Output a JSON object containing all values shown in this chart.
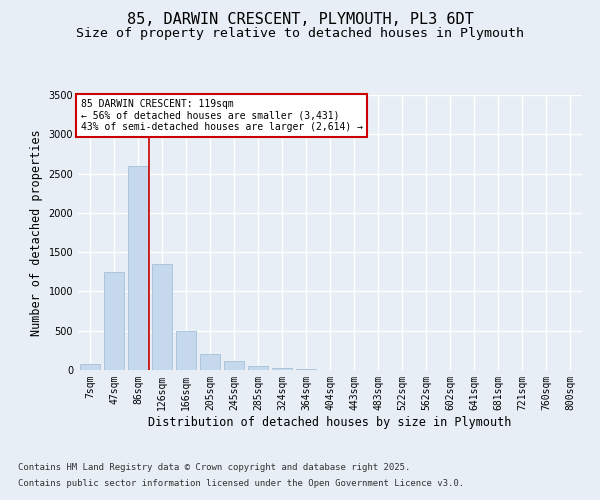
{
  "title1": "85, DARWIN CRESCENT, PLYMOUTH, PL3 6DT",
  "title2": "Size of property relative to detached houses in Plymouth",
  "xlabel": "Distribution of detached houses by size in Plymouth",
  "ylabel": "Number of detached properties",
  "categories": [
    "7sqm",
    "47sqm",
    "86sqm",
    "126sqm",
    "166sqm",
    "205sqm",
    "245sqm",
    "285sqm",
    "324sqm",
    "364sqm",
    "404sqm",
    "443sqm",
    "483sqm",
    "522sqm",
    "562sqm",
    "602sqm",
    "641sqm",
    "681sqm",
    "721sqm",
    "760sqm",
    "800sqm"
  ],
  "bar_values": [
    75,
    1250,
    2600,
    1350,
    500,
    200,
    120,
    50,
    30,
    15,
    5,
    3,
    2,
    1,
    1,
    0,
    0,
    0,
    0,
    0,
    0
  ],
  "bar_color": "#c5d8ec",
  "bar_edge_color": "#9ab8d4",
  "background_color": "#e8eef5",
  "grid_color": "#ffffff",
  "vline_x": 2.45,
  "vline_color": "#cc0000",
  "annotation_line1": "85 DARWIN CRESCENT: 119sqm",
  "annotation_line2": "← 56% of detached houses are smaller (3,431)",
  "annotation_line3": "43% of semi-detached houses are larger (2,614) →",
  "annotation_box_color": "#ffffff",
  "annotation_box_edge": "#cc0000",
  "ylim": [
    0,
    3500
  ],
  "yticks": [
    0,
    500,
    1000,
    1500,
    2000,
    2500,
    3000,
    3500
  ],
  "footer1": "Contains HM Land Registry data © Crown copyright and database right 2025.",
  "footer2": "Contains public sector information licensed under the Open Government Licence v3.0.",
  "title_fontsize": 11,
  "subtitle_fontsize": 9.5,
  "tick_fontsize": 7,
  "label_fontsize": 8.5,
  "footer_fontsize": 6.5,
  "annotation_fontsize": 7
}
